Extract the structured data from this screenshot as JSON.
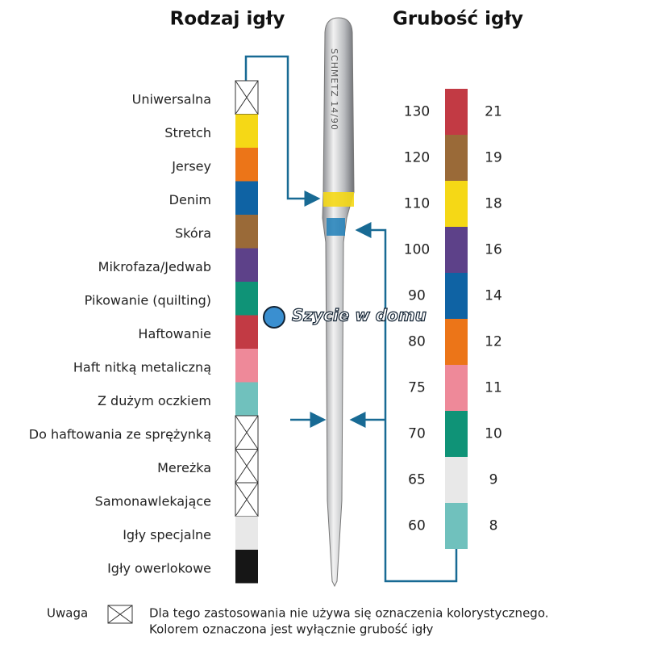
{
  "titles": {
    "left": "Rodzaj igły",
    "right": "Grubość igły"
  },
  "needle_engraving": "SCHMETZ 14/90",
  "watermark": "Szycie w domu",
  "types": [
    {
      "label": "Uniwersalna",
      "crossed": true
    },
    {
      "label": "Stretch",
      "color": "#f5d816"
    },
    {
      "label": "Jersey",
      "color": "#ec7518"
    },
    {
      "label": "Denim",
      "color": "#0f63a4"
    },
    {
      "label": "Skóra",
      "color": "#9a6a38"
    },
    {
      "label": "Mikrofaza/Jedwab",
      "color": "#5d4189"
    },
    {
      "label": "Pikowanie (quilting)",
      "color": "#0f9377"
    },
    {
      "label": "Haftowanie",
      "color": "#c23a44"
    },
    {
      "label": "Haft nitką metaliczną",
      "color": "#ee8999"
    },
    {
      "label": "Z dużym oczkiem",
      "color": "#70c1bd"
    },
    {
      "label": "Do haftowania ze sprężynką",
      "crossed": true
    },
    {
      "label": "Mereżka",
      "crossed": true
    },
    {
      "label": "Samonawlekające",
      "crossed": true
    },
    {
      "label": "Igły specjalne",
      "color": "#e8e8e8"
    },
    {
      "label": "Igły owerlokowe",
      "color": "#161616"
    }
  ],
  "sizes": [
    {
      "metric": "130",
      "us": "21",
      "color": "#c23a44"
    },
    {
      "metric": "120",
      "us": "19",
      "color": "#9a6a38"
    },
    {
      "metric": "110",
      "us": "18",
      "color": "#f5d816"
    },
    {
      "metric": "100",
      "us": "16",
      "color": "#5d4189"
    },
    {
      "metric": "90",
      "us": "14",
      "color": "#0f63a4"
    },
    {
      "metric": "80",
      "us": "12",
      "color": "#ec7518"
    },
    {
      "metric": "75",
      "us": "11",
      "color": "#ee8999"
    },
    {
      "metric": "70",
      "us": "10",
      "color": "#0f9377"
    },
    {
      "metric": "65",
      "us": "9",
      "color": "#e8e8e8"
    },
    {
      "metric": "60",
      "us": "8",
      "color": "#70c1bd"
    }
  ],
  "note": {
    "label": "Uwaga",
    "lines": [
      "Dla tego zastosowania nie używa się oznaczenia kolorystycznego.",
      "Kolorem oznaczona jest wyłącznie grubość igły"
    ]
  }
}
